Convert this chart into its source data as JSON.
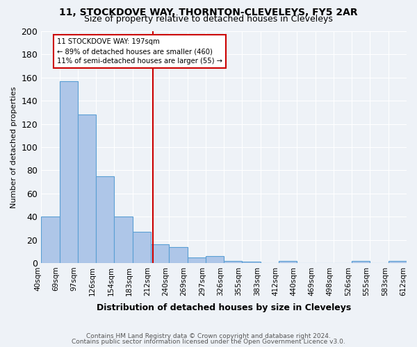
{
  "title1": "11, STOCKDOVE WAY, THORNTON-CLEVELEYS, FY5 2AR",
  "title2": "Size of property relative to detached houses in Cleveleys",
  "xlabel": "Distribution of detached houses by size in Cleveleys",
  "ylabel": "Number of detached properties",
  "bins": [
    "40sqm",
    "69sqm",
    "97sqm",
    "126sqm",
    "154sqm",
    "183sqm",
    "212sqm",
    "240sqm",
    "269sqm",
    "297sqm",
    "326sqm",
    "355sqm",
    "383sqm",
    "412sqm",
    "440sqm",
    "469sqm",
    "498sqm",
    "526sqm",
    "555sqm",
    "583sqm",
    "612sqm"
  ],
  "values": [
    40,
    157,
    128,
    75,
    40,
    27,
    16,
    14,
    5,
    6,
    2,
    1,
    0,
    2,
    0,
    0,
    0,
    2,
    0,
    2
  ],
  "bar_color": "#aec6e8",
  "bar_edge_color": "#5a9fd4",
  "vline_x": 5.6,
  "vline_color": "#cc0000",
  "annotation_line1": "11 STOCKDOVE WAY: 197sqm",
  "annotation_line2": "← 89% of detached houses are smaller (460)",
  "annotation_line3": "11% of semi-detached houses are larger (55) →",
  "annotation_box_color": "#ffffff",
  "annotation_box_edge": "#cc0000",
  "footer1": "Contains HM Land Registry data © Crown copyright and database right 2024.",
  "footer2": "Contains public sector information licensed under the Open Government Licence v3.0.",
  "bg_color": "#eef2f7",
  "ylim": [
    0,
    200
  ],
  "yticks": [
    0,
    20,
    40,
    60,
    80,
    100,
    120,
    140,
    160,
    180,
    200
  ]
}
